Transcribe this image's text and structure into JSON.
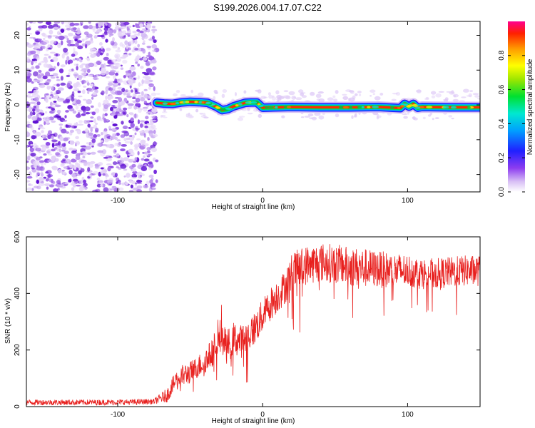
{
  "chart_data": [
    {
      "type": "heatmap",
      "title": "S199.2026.004.17.07.C22",
      "xlabel": "Height of straight line (km)",
      "ylabel": "Frequency (Hz)",
      "xlim": [
        -163,
        150
      ],
      "ylim": [
        -25,
        24
      ],
      "xticks": [
        -100,
        0,
        100
      ],
      "yticks": [
        20,
        10,
        0,
        -10,
        -20
      ],
      "noise_region_x": [
        -163,
        -73
      ],
      "signal_start_x": -73,
      "signal_path": {
        "x": [
          -73,
          -68,
          -62,
          -56,
          -50,
          -44,
          -38,
          -32,
          -28,
          -24,
          -20,
          -16,
          -12,
          -8,
          -4,
          0,
          20,
          40,
          60,
          80,
          95,
          98,
          101,
          104,
          107,
          110,
          130,
          150
        ],
        "f": [
          0.6,
          0.4,
          0.3,
          0.7,
          0.9,
          0.8,
          0.6,
          -0.5,
          -1.5,
          -1.2,
          -0.4,
          0.1,
          0.6,
          0.7,
          0.7,
          -0.8,
          -0.6,
          -0.7,
          -0.7,
          -0.6,
          -0.9,
          0.3,
          -0.5,
          0.3,
          -0.8,
          -0.6,
          -0.7,
          -0.7
        ]
      },
      "colorbar": {
        "label": "Normalized spectral amplitude",
        "ticks": [
          0.0,
          0.2,
          0.4,
          0.6,
          0.8
        ],
        "tick_labels": [
          "0.0",
          "0.2",
          "0.4",
          "0.6",
          "0.8"
        ],
        "range": [
          0,
          1
        ]
      }
    },
    {
      "type": "line",
      "xlabel": "Height of straight line (km)",
      "ylabel": "SNR (10 * v/v)",
      "xlim": [
        -163,
        150
      ],
      "ylim": [
        0,
        600
      ],
      "xticks": [
        -100,
        0,
        100
      ],
      "yticks": [
        0,
        200,
        400,
        600
      ],
      "series": [
        {
          "name": "SNR",
          "color": "#e8201e",
          "x": [
            -163,
            -140,
            -110,
            -90,
            -75,
            -66,
            -60,
            -55,
            -50,
            -45,
            -40,
            -35,
            -30,
            -28,
            -25,
            -20,
            -15,
            -10,
            -5,
            0,
            5,
            10,
            15,
            20,
            25,
            30,
            40,
            50,
            60,
            70,
            80,
            90,
            100,
            110,
            120,
            130,
            140,
            150
          ],
          "values": [
            15,
            15,
            15,
            16,
            18,
            40,
            90,
            110,
            120,
            140,
            160,
            190,
            250,
            240,
            210,
            240,
            230,
            250,
            280,
            320,
            360,
            390,
            420,
            470,
            490,
            500,
            510,
            505,
            495,
            490,
            485,
            480,
            480,
            470,
            470,
            475,
            480,
            480
          ],
          "noise_amp": [
            10,
            10,
            10,
            10,
            10,
            25,
            35,
            40,
            40,
            40,
            45,
            50,
            80,
            70,
            60,
            60,
            60,
            60,
            60,
            60,
            60,
            60,
            60,
            70,
            70,
            70,
            70,
            70,
            70,
            70,
            65,
            65,
            60,
            55,
            55,
            55,
            55,
            55
          ]
        }
      ]
    }
  ]
}
